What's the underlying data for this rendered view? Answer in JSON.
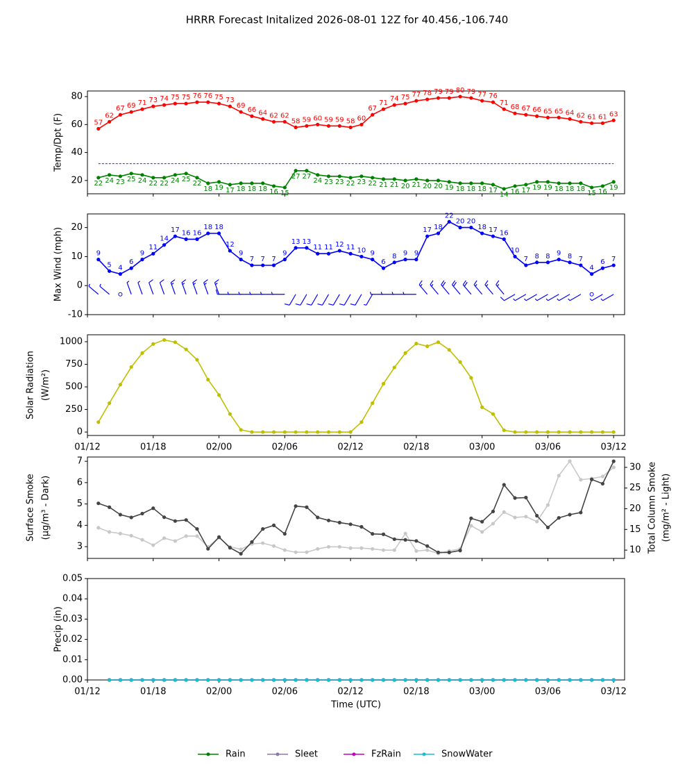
{
  "title": "HRRR Forecast Initalized 2026-08-01 12Z for 40.456,-106.740",
  "chart_data": [
    {
      "type": "line",
      "ylabel": [
        "Temp/Dpt (F)"
      ],
      "xlim": [
        "01/12",
        "03/13"
      ],
      "xticks": [
        "01/12",
        "01/18",
        "02/00",
        "02/06",
        "02/12",
        "02/18",
        "03/00",
        "03/06",
        "03/12"
      ],
      "xticklabels": false,
      "x": [
        "01/13",
        "01/14",
        "01/15",
        "01/16",
        "01/17",
        "01/18",
        "01/19",
        "01/20",
        "01/21",
        "01/22",
        "01/23",
        "02/00",
        "02/01",
        "02/02",
        "02/03",
        "02/04",
        "02/05",
        "02/06",
        "02/07",
        "02/08",
        "02/09",
        "02/10",
        "02/11",
        "02/12",
        "02/13",
        "02/14",
        "02/15",
        "02/16",
        "02/17",
        "02/18",
        "02/19",
        "02/20",
        "02/21",
        "02/22",
        "02/23",
        "03/00",
        "03/01",
        "03/02",
        "03/03",
        "03/04",
        "03/05",
        "03/06",
        "03/07",
        "03/08",
        "03/09",
        "03/10",
        "03/11",
        "03/12"
      ],
      "ylim": [
        10.5,
        84
      ],
      "yticks": [
        20,
        40,
        60,
        80
      ],
      "hlines": [
        {
          "value": 32,
          "color": "#0000ff"
        }
      ],
      "series": [
        {
          "color": "#ff0000",
          "labels": "above",
          "values": [
            57,
            62,
            67,
            69,
            71,
            73,
            74,
            75,
            75,
            76,
            76,
            75,
            73,
            69,
            66,
            64,
            62,
            62,
            58,
            59,
            60,
            59,
            59,
            58,
            60,
            67,
            71,
            74,
            75,
            77,
            78,
            79,
            79,
            80,
            79,
            77,
            76,
            71,
            68,
            67,
            66,
            65,
            65,
            64,
            62,
            61,
            61,
            63
          ]
        },
        {
          "color": "#008000",
          "labels": "below",
          "values": [
            22,
            24,
            23,
            25,
            24,
            22,
            22,
            24,
            25,
            22,
            18,
            19,
            17,
            18,
            18,
            18,
            16,
            15,
            27,
            27,
            24,
            23,
            23,
            22,
            23,
            22,
            21,
            21,
            20,
            21,
            20,
            20,
            19,
            18,
            18,
            18,
            17,
            14,
            16,
            17,
            19,
            19,
            18,
            18,
            18,
            15,
            16,
            19
          ]
        }
      ]
    },
    {
      "type": "line",
      "ylabel": [
        "Max Wind (mph)"
      ],
      "xlim": [
        "01/12",
        "03/13"
      ],
      "xticks": [
        "01/12",
        "01/18",
        "02/00",
        "02/06",
        "02/12",
        "02/18",
        "03/00",
        "03/06",
        "03/12"
      ],
      "xticklabels": false,
      "x": [
        "01/13",
        "01/14",
        "01/15",
        "01/16",
        "01/17",
        "01/18",
        "01/19",
        "01/20",
        "01/21",
        "01/22",
        "01/23",
        "02/00",
        "02/01",
        "02/02",
        "02/03",
        "02/04",
        "02/05",
        "02/06",
        "02/07",
        "02/08",
        "02/09",
        "02/10",
        "02/11",
        "02/12",
        "02/13",
        "02/14",
        "02/15",
        "02/16",
        "02/17",
        "02/18",
        "02/19",
        "02/20",
        "02/21",
        "02/22",
        "02/23",
        "03/00",
        "03/01",
        "03/02",
        "03/03",
        "03/04",
        "03/05",
        "03/06",
        "03/07",
        "03/08",
        "03/09",
        "03/10",
        "03/11",
        "03/12"
      ],
      "ylim": [
        -10,
        24.7
      ],
      "yticks": [
        -10,
        0,
        10,
        20
      ],
      "barb_level": -3,
      "wind_direction": [
        310,
        310,
        310,
        340,
        340,
        340,
        340,
        340,
        340,
        340,
        340,
        340,
        270,
        270,
        270,
        270,
        270,
        270,
        210,
        210,
        210,
        210,
        210,
        210,
        210,
        210,
        270,
        270,
        270,
        270,
        320,
        320,
        320,
        320,
        320,
        320,
        320,
        320,
        240,
        240,
        240,
        240,
        240,
        240,
        240,
        240,
        240,
        240
      ],
      "series": [
        {
          "color": "#0000ff",
          "labels": "above",
          "values": [
            9,
            5,
            4,
            6,
            9,
            11,
            14,
            17,
            16,
            16,
            18,
            18,
            12,
            9,
            7,
            7,
            7,
            9,
            13,
            13,
            11,
            11,
            12,
            11,
            10,
            9,
            6,
            8,
            9,
            9,
            17,
            18,
            22,
            20,
            20,
            18,
            17,
            16,
            10,
            7,
            8,
            8,
            9,
            8,
            7,
            4,
            6,
            7
          ]
        }
      ]
    },
    {
      "type": "line",
      "ylabel": [
        "Solar Radiation",
        "(W/m²)"
      ],
      "xlim": [
        "01/12",
        "03/13"
      ],
      "xticks": [
        "01/12",
        "01/18",
        "02/00",
        "02/06",
        "02/12",
        "02/18",
        "03/00",
        "03/06",
        "03/12"
      ],
      "xticklabels": true,
      "x": [
        "01/13",
        "01/14",
        "01/15",
        "01/16",
        "01/17",
        "01/18",
        "01/19",
        "01/20",
        "01/21",
        "01/22",
        "01/23",
        "02/00",
        "02/01",
        "02/02",
        "02/03",
        "02/04",
        "02/05",
        "02/06",
        "02/07",
        "02/08",
        "02/09",
        "02/10",
        "02/11",
        "02/12",
        "02/13",
        "02/14",
        "02/15",
        "02/16",
        "02/17",
        "02/18",
        "02/19",
        "02/20",
        "02/21",
        "02/22",
        "02/23",
        "03/00",
        "03/01",
        "03/02",
        "03/03",
        "03/04",
        "03/05",
        "03/06",
        "03/07",
        "03/08",
        "03/09",
        "03/10",
        "03/11",
        "03/12"
      ],
      "ylim": [
        -38,
        1077
      ],
      "yticks": [
        0,
        250,
        500,
        750,
        1000
      ],
      "series": [
        {
          "color": "#bfbf00",
          "values": [
            110,
            320,
            525,
            720,
            875,
            975,
            1020,
            995,
            915,
            800,
            580,
            410,
            200,
            25,
            0,
            0,
            0,
            0,
            0,
            0,
            0,
            0,
            0,
            0,
            110,
            320,
            535,
            715,
            875,
            980,
            950,
            995,
            910,
            775,
            600,
            275,
            200,
            20,
            0,
            0,
            0,
            0,
            0,
            0,
            0,
            0,
            0,
            0
          ]
        }
      ]
    },
    {
      "type": "line",
      "ylabel": [
        "Surface Smoke",
        "(μg/m³ - Dark)"
      ],
      "y2label": [
        "Total Column Smoke",
        "(mg/m² - Light)"
      ],
      "xlim": [
        "01/12",
        "03/13"
      ],
      "xticks": [
        "01/12",
        "01/18",
        "02/00",
        "02/06",
        "02/12",
        "02/18",
        "03/00",
        "03/06",
        "03/12"
      ],
      "xticklabels": false,
      "x": [
        "01/13",
        "01/14",
        "01/15",
        "01/16",
        "01/17",
        "01/18",
        "01/19",
        "01/20",
        "01/21",
        "01/22",
        "01/23",
        "02/00",
        "02/01",
        "02/02",
        "02/03",
        "02/04",
        "02/05",
        "02/06",
        "02/07",
        "02/08",
        "02/09",
        "02/10",
        "02/11",
        "02/12",
        "02/13",
        "02/14",
        "02/15",
        "02/16",
        "02/17",
        "02/18",
        "02/19",
        "02/20",
        "02/21",
        "02/22",
        "02/23",
        "03/00",
        "03/01",
        "03/02",
        "03/03",
        "03/04",
        "03/05",
        "03/06",
        "03/07",
        "03/08",
        "03/09",
        "03/10",
        "03/11",
        "03/12"
      ],
      "ylim": [
        2.45,
        7.2
      ],
      "yticks": [
        3,
        4,
        5,
        6,
        7
      ],
      "y2lim": [
        8,
        32.5
      ],
      "y2ticks": [
        10,
        15,
        20,
        25,
        30
      ],
      "series": [
        {
          "color": "#c8c8c8",
          "axis": "y2",
          "values": [
            15.4,
            14.4,
            14.0,
            13.5,
            12.5,
            11.2,
            12.9,
            12.2,
            13.4,
            13.4,
            10.8,
            13.0,
            10.8,
            10.2,
            11.5,
            11.7,
            11.0,
            10.0,
            9.5,
            9.5,
            10.3,
            10.8,
            10.8,
            10.5,
            10.5,
            10.3,
            10.0,
            10.0,
            14.0,
            9.8,
            10.0,
            9.2,
            9.8,
            10.3,
            15.9,
            14.4,
            16.4,
            19.2,
            17.9,
            18.1,
            16.9,
            20.9,
            28.0,
            31.5,
            27.0,
            27.3,
            27.8,
            30.0
          ]
        },
        {
          "color": "#444444",
          "values": [
            5.03,
            4.85,
            4.5,
            4.37,
            4.55,
            4.8,
            4.38,
            4.2,
            4.25,
            3.83,
            2.9,
            3.45,
            2.95,
            2.67,
            3.22,
            3.83,
            4.0,
            3.6,
            4.9,
            4.85,
            4.37,
            4.23,
            4.13,
            4.05,
            3.93,
            3.6,
            3.58,
            3.35,
            3.32,
            3.27,
            3.03,
            2.73,
            2.73,
            2.82,
            4.33,
            4.17,
            4.65,
            5.9,
            5.28,
            5.3,
            4.45,
            3.9,
            4.35,
            4.5,
            4.6,
            6.15,
            5.95,
            7.0
          ]
        }
      ]
    },
    {
      "type": "line",
      "ylabel": [
        "Precip (in)"
      ],
      "xlabel": "Time (UTC)",
      "xlim": [
        "01/12",
        "03/13"
      ],
      "xticks": [
        "01/12",
        "01/18",
        "02/00",
        "02/06",
        "02/12",
        "02/18",
        "03/00",
        "03/06",
        "03/12"
      ],
      "xticklabels": true,
      "x": [
        "01/13",
        "01/14",
        "01/15",
        "01/16",
        "01/17",
        "01/18",
        "01/19",
        "01/20",
        "01/21",
        "01/22",
        "01/23",
        "02/00",
        "02/01",
        "02/02",
        "02/03",
        "02/04",
        "02/05",
        "02/06",
        "02/07",
        "02/08",
        "02/09",
        "02/10",
        "02/11",
        "02/12",
        "02/13",
        "02/14",
        "02/15",
        "02/16",
        "02/17",
        "02/18",
        "02/19",
        "02/20",
        "02/21",
        "02/22",
        "02/23",
        "03/00",
        "03/01",
        "03/02",
        "03/03",
        "03/04",
        "03/05",
        "03/06",
        "03/07",
        "03/08",
        "03/09",
        "03/10",
        "03/11",
        "03/12"
      ],
      "ylim": [
        0,
        0.05
      ],
      "yticks": [
        {
          "value": 0,
          "label": "0.00"
        },
        {
          "value": 0.01,
          "label": "0.01"
        },
        {
          "value": 0.02,
          "label": "0.02"
        },
        {
          "value": 0.03,
          "label": "0.03"
        },
        {
          "value": 0.04,
          "label": "0.04"
        },
        {
          "value": 0.05,
          "label": "0.05"
        }
      ],
      "legend": "lower center",
      "series": [
        {
          "name": "Rain",
          "color": "#008000",
          "values": [
            null,
            0,
            0,
            0,
            0,
            0,
            0,
            0,
            0,
            0,
            0,
            0,
            0,
            0,
            0,
            0,
            0,
            0,
            0,
            0,
            0,
            0,
            0,
            0,
            0,
            0,
            0,
            0,
            0,
            0,
            0,
            0,
            0,
            0,
            0,
            0,
            0,
            0,
            0,
            0,
            0,
            0,
            0,
            0,
            0,
            0,
            0,
            0
          ]
        },
        {
          "name": "Sleet",
          "color": "#8878a8",
          "values": [
            null,
            0,
            0,
            0,
            0,
            0,
            0,
            0,
            0,
            0,
            0,
            0,
            0,
            0,
            0,
            0,
            0,
            0,
            0,
            0,
            0,
            0,
            0,
            0,
            0,
            0,
            0,
            0,
            0,
            0,
            0,
            0,
            0,
            0,
            0,
            0,
            0,
            0,
            0,
            0,
            0,
            0,
            0,
            0,
            0,
            0,
            0,
            0
          ]
        },
        {
          "name": "FzRain",
          "color": "#bf00bf",
          "values": [
            null,
            0,
            0,
            0,
            0,
            0,
            0,
            0,
            0,
            0,
            0,
            0,
            0,
            0,
            0,
            0,
            0,
            0,
            0,
            0,
            0,
            0,
            0,
            0,
            0,
            0,
            0,
            0,
            0,
            0,
            0,
            0,
            0,
            0,
            0,
            0,
            0,
            0,
            0,
            0,
            0,
            0,
            0,
            0,
            0,
            0,
            0,
            0
          ]
        },
        {
          "name": "SnowWater",
          "color": "#17becf",
          "values": [
            null,
            0,
            0,
            0,
            0,
            0,
            0,
            0,
            0,
            0,
            0,
            0,
            0,
            0,
            0,
            0,
            0,
            0,
            0,
            0,
            0,
            0,
            0,
            0,
            0,
            0,
            0,
            0,
            0,
            0,
            0,
            0,
            0,
            0,
            0,
            0,
            0,
            0,
            0,
            0,
            0,
            0,
            0,
            0,
            0,
            0,
            0,
            0
          ]
        }
      ]
    }
  ]
}
